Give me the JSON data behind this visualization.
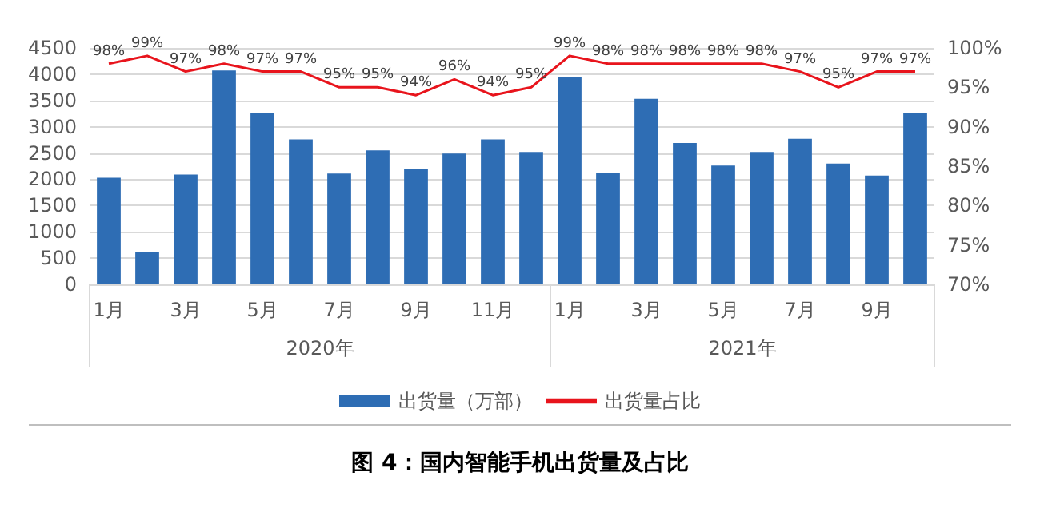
{
  "chart_data": {
    "type": "bar",
    "title": "图 4：国内智能手机出货量及占比",
    "categories": [
      "1月",
      null,
      "3月",
      null,
      "5月",
      null,
      "7月",
      null,
      "9月",
      null,
      "11月",
      null,
      "1月",
      null,
      "3月",
      null,
      "5月",
      null,
      "7月",
      null,
      "9月",
      null
    ],
    "annotations": [
      "2020年",
      "2021年"
    ],
    "series": [
      {
        "name": "出货量（万部）",
        "color": "#2e6db4",
        "values": [
          2030,
          620,
          2090,
          4070,
          3260,
          2760,
          2110,
          2550,
          2190,
          2490,
          2760,
          2520,
          3950,
          2130,
          3530,
          2690,
          2260,
          2520,
          2770,
          2300,
          2070,
          3260
        ]
      },
      {
        "name": "出货量占比",
        "type": "line",
        "axis": "y2",
        "color": "#e8141c",
        "values": [
          98,
          99,
          97,
          98,
          97,
          97,
          95,
          95,
          94,
          96,
          94,
          95,
          99,
          98,
          98,
          98,
          98,
          98,
          97,
          95,
          97,
          97
        ],
        "value_labels": [
          "98%",
          "99%",
          "97%",
          "98%",
          "97%",
          "97%",
          "95%",
          "95%",
          "94%",
          "96%",
          "94%",
          "95%",
          "99%",
          "98%",
          "98%",
          "98%",
          "98%",
          "98%",
          "97%",
          "95%",
          "97%",
          "97%"
        ]
      }
    ],
    "ylim": [
      0,
      4500
    ],
    "yticks": [
      0,
      500,
      1000,
      1500,
      2000,
      2500,
      3000,
      3500,
      4000,
      4500
    ],
    "y2lim": [
      70,
      100
    ],
    "y2ticks": [
      {
        "value": 70,
        "label": "70%"
      },
      {
        "value": 75,
        "label": "75%"
      },
      {
        "value": 80,
        "label": "80%"
      },
      {
        "value": 85,
        "label": "85%"
      },
      {
        "value": 90,
        "label": "90%"
      },
      {
        "value": 95,
        "label": "95%"
      },
      {
        "value": 100,
        "label": "100%"
      }
    ],
    "grid": "y",
    "legend": "bottom",
    "marker": "none"
  }
}
